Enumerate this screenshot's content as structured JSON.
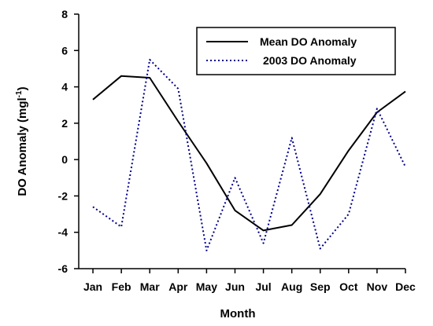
{
  "chart_data": {
    "type": "line",
    "categories": [
      "Jan",
      "Feb",
      "Mar",
      "Apr",
      "May",
      "Jun",
      "Jul",
      "Aug",
      "Sep",
      "Oct",
      "Nov",
      "Dec"
    ],
    "series": [
      {
        "name": "Mean DO Anomaly",
        "values": [
          3.3,
          4.6,
          4.5,
          2.1,
          -0.2,
          -2.8,
          -3.9,
          -3.6,
          -1.9,
          0.5,
          2.6,
          3.75
        ],
        "color": "#000000",
        "style": "solid"
      },
      {
        "name": "2003 DO Anomaly",
        "values": [
          -2.6,
          -3.7,
          5.5,
          3.9,
          -5.0,
          -1.0,
          -4.6,
          1.2,
          -4.9,
          -3.0,
          2.8,
          -0.4
        ],
        "color": "#00008b",
        "style": "dotted"
      }
    ],
    "xlabel": "Month",
    "ylabel": "DO Anomaly (mgl",
    "ylabel_sup": "-1",
    "ylabel_suffix": ")",
    "ylim": [
      -6,
      8
    ],
    "yticks": [
      -6,
      -4,
      -2,
      0,
      2,
      4,
      6,
      8
    ],
    "grid": false,
    "legend_position": "top-right"
  }
}
